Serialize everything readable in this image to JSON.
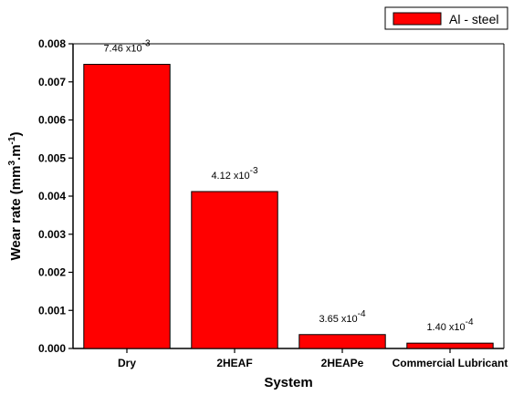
{
  "chart_data": {
    "type": "bar",
    "categories": [
      "Dry",
      "2HEAF",
      "2HEAPe",
      "Commercial Lubricant"
    ],
    "series": [
      {
        "name": "Al - steel",
        "values": [
          0.00746,
          0.00412,
          0.000365,
          0.00014
        ],
        "color": "#ff0000"
      }
    ],
    "data_labels": [
      {
        "mantissa": "7.46 x10",
        "exp": "-3"
      },
      {
        "mantissa": "4.12 x10",
        "exp": "-3"
      },
      {
        "mantissa": "3.65 x10",
        "exp": "-4"
      },
      {
        "mantissa": "1.40 x10",
        "exp": "-4"
      }
    ],
    "yticks": [
      "0.000",
      "0.001",
      "0.002",
      "0.003",
      "0.004",
      "0.005",
      "0.006",
      "0.007",
      "0.008"
    ],
    "ylim": [
      0,
      0.008
    ],
    "xlabel": "System",
    "ylabel": {
      "pre": "Wear rate (mm",
      "sup1": "3",
      "mid": ".m",
      "sup2": "-1",
      "post": ")"
    },
    "legend_position": "top-right",
    "grid": false
  }
}
